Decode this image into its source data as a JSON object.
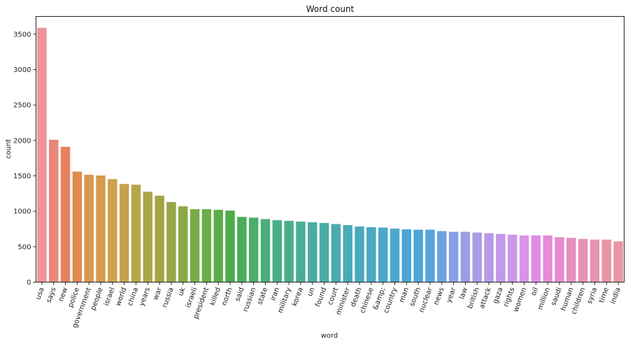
{
  "chart_data": {
    "type": "bar",
    "title": "Word count",
    "xlabel": "word",
    "ylabel": "count",
    "ylim": [
      0,
      3750
    ],
    "yticks": [
      0,
      500,
      1000,
      1500,
      2000,
      2500,
      3000,
      3500
    ],
    "grid": false,
    "categories": [
      "usa",
      "says",
      "new",
      "police",
      "government",
      "people",
      "israel",
      "world",
      "china",
      "years",
      "war",
      "russia",
      "uk",
      "israeli",
      "president",
      "killed",
      "north",
      "said",
      "russian",
      "state",
      "iran",
      "military",
      "korea",
      "un",
      "found",
      "court",
      "minister",
      "death",
      "chinese",
      "&amp;",
      "country",
      "man",
      "south",
      "nuclear",
      "news",
      "year",
      "law",
      "british",
      "attack",
      "gaza",
      "rights",
      "women",
      "oil",
      "million",
      "saudi",
      "human",
      "children",
      "syria",
      "time",
      "india"
    ],
    "values": [
      3590,
      2010,
      1910,
      1560,
      1515,
      1505,
      1455,
      1385,
      1375,
      1275,
      1220,
      1130,
      1070,
      1030,
      1030,
      1020,
      1010,
      920,
      910,
      890,
      875,
      865,
      855,
      845,
      835,
      820,
      805,
      785,
      775,
      770,
      755,
      745,
      740,
      740,
      720,
      710,
      710,
      700,
      690,
      680,
      670,
      660,
      660,
      660,
      635,
      625,
      610,
      600,
      600,
      575
    ],
    "colors": [
      "#ec9499",
      "#e9877a",
      "#e7825f",
      "#e28b4e",
      "#db9650",
      "#d59b4f",
      "#d0a14e",
      "#c5a24a",
      "#b6a647",
      "#aba646",
      "#a6a346",
      "#9aa646",
      "#8aaa47",
      "#78ac47",
      "#6aad48",
      "#5aad48",
      "#4cac48",
      "#4aad5a",
      "#4aae6e",
      "#4aae7c",
      "#4aae86",
      "#4aae8e",
      "#4aad96",
      "#4aac9e",
      "#4aaba6",
      "#4aaab0",
      "#4aaab6",
      "#4aa9bc",
      "#4aa8c2",
      "#4aa8c8",
      "#4aa7cc",
      "#4ba6d2",
      "#4ea5d8",
      "#55a4de",
      "#6aa2e2",
      "#84a0e4",
      "#9a9ee6",
      "#aa9ce8",
      "#b69ae8",
      "#c298e8",
      "#cc96e8",
      "#d894e8",
      "#e08ce6",
      "#e48cd6",
      "#e68ccb",
      "#e68ebf",
      "#e890b5",
      "#e892ad",
      "#e894a6",
      "#e8969f"
    ]
  }
}
